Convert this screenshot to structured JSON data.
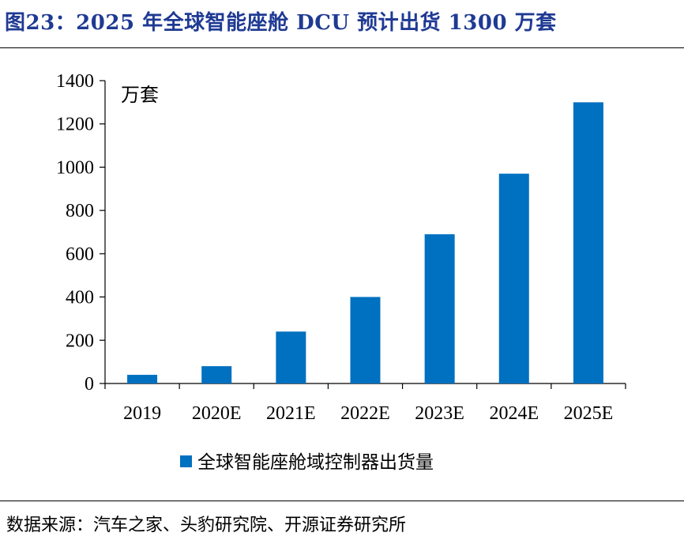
{
  "header": {
    "title": "图23：2025 年全球智能座舱 DCU 预计出货 1300 万套"
  },
  "footer": {
    "source": "数据来源：汽车之家、头豹研究院、开源证券研究所"
  },
  "colors": {
    "title": "#1f3a93",
    "bar": "#0070c0",
    "axis": "#000000"
  },
  "chart_data": {
    "type": "bar",
    "title": "",
    "unit_label": "万套",
    "xlabel": "",
    "ylabel": "",
    "categories": [
      "2019",
      "2020E",
      "2021E",
      "2022E",
      "2023E",
      "2024E",
      "2025E"
    ],
    "series": [
      {
        "name": "全球智能座舱域控制器出货量",
        "values": [
          40,
          80,
          240,
          400,
          690,
          970,
          1300
        ]
      }
    ],
    "ylim": [
      0,
      1400
    ],
    "yticks": [
      0,
      200,
      400,
      600,
      800,
      1000,
      1200,
      1400
    ],
    "grid": false,
    "legend_position": "bottom"
  }
}
